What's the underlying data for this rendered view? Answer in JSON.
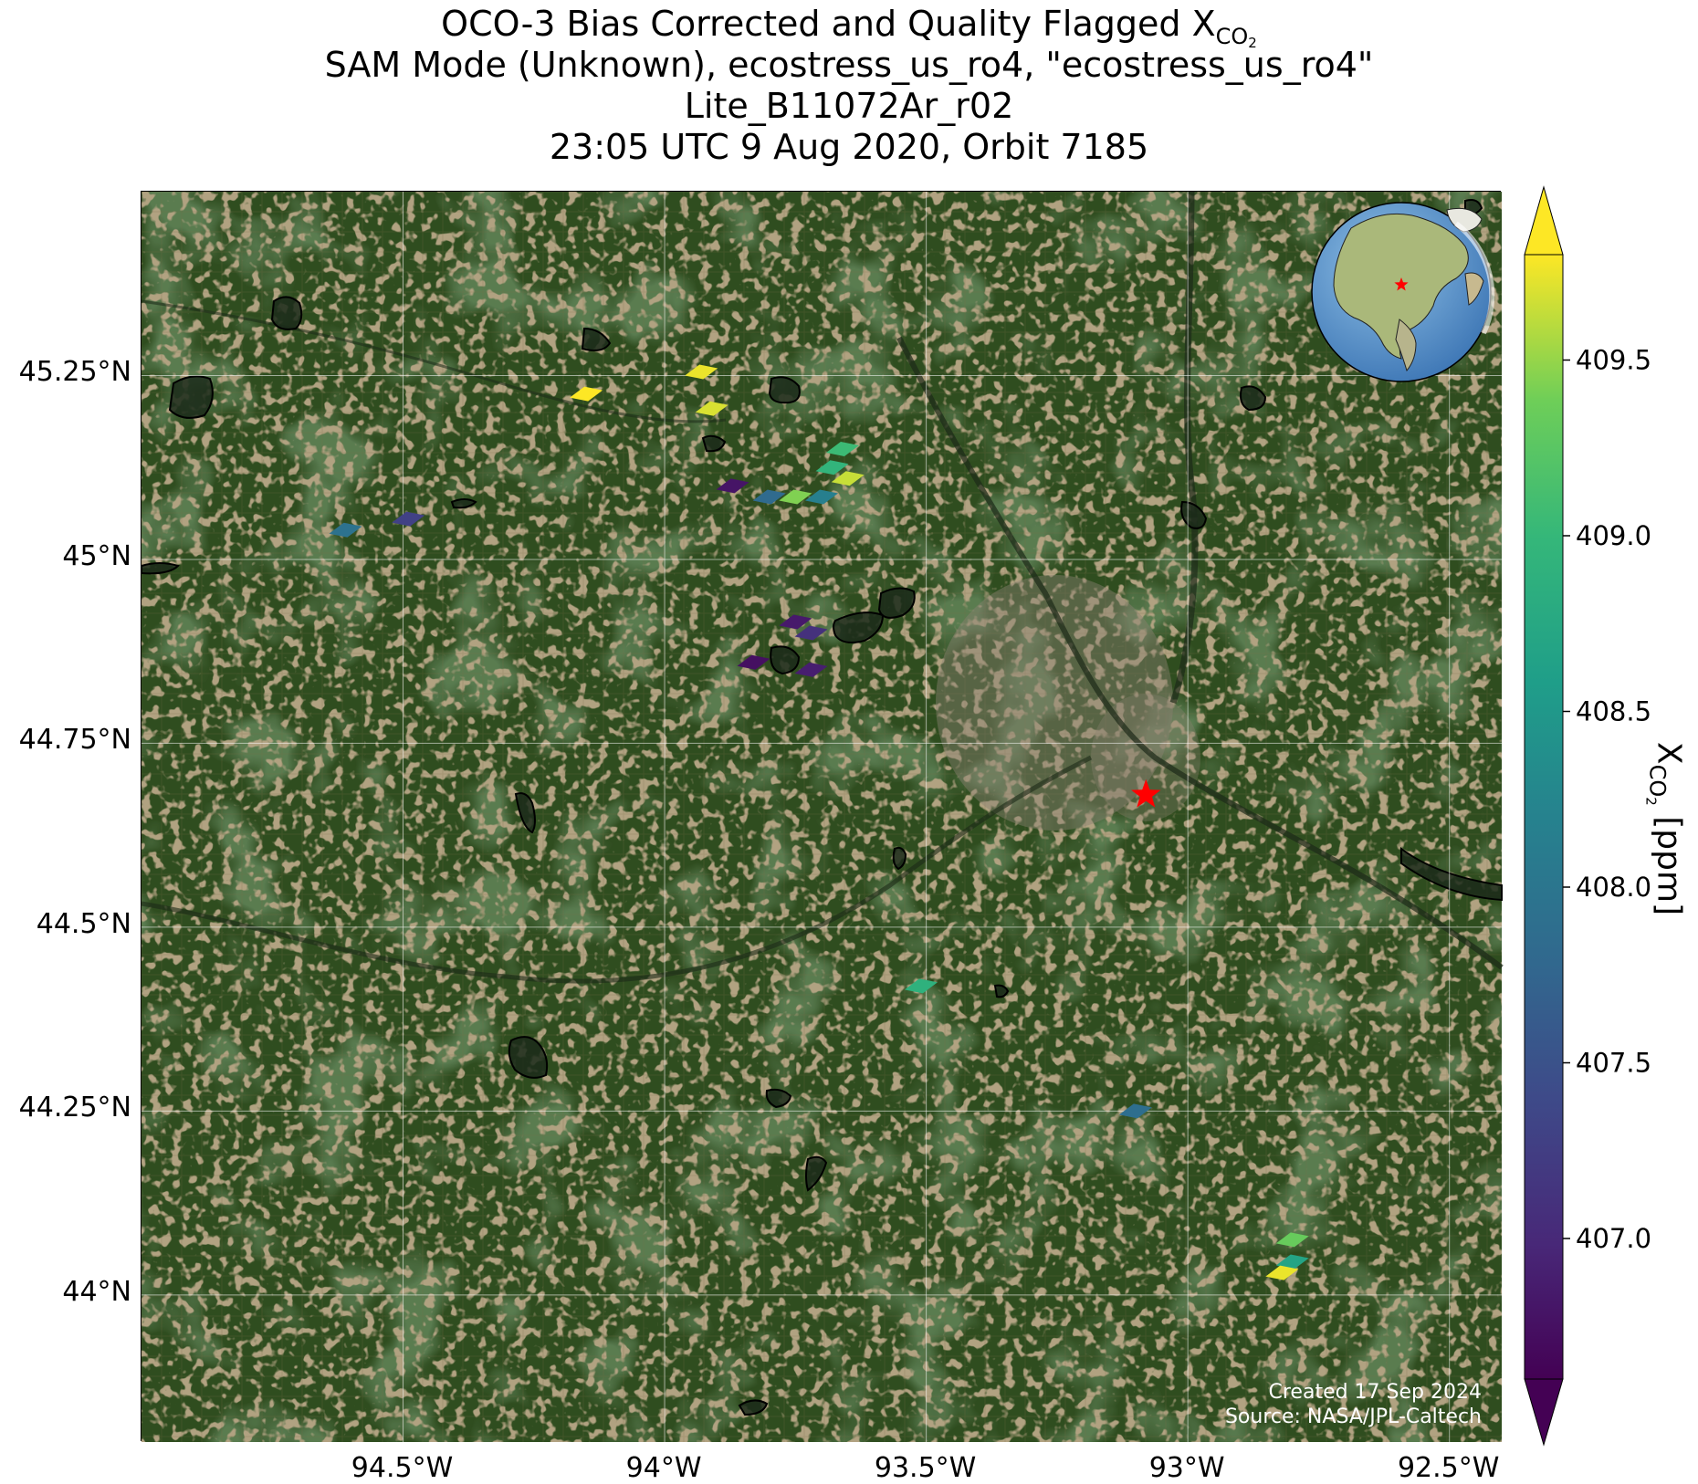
{
  "title": {
    "line1_prefix": "OCO-3 Bias Corrected and Quality Flagged X",
    "line1_sub": "CO",
    "line1_subsub": "2",
    "line2": "SAM Mode (Unknown), ecostress_us_ro4, \"ecostress_us_ro4\"",
    "line3": "Lite_B11072Ar_r02",
    "line4": "23:05 UTC 9 Aug 2020, Orbit 7185"
  },
  "map": {
    "lon_range": [
      -95.0,
      -92.4
    ],
    "lat_range": [
      43.8,
      45.5
    ],
    "basemap": "satellite imagery",
    "gridlines": true,
    "lon_ticks": [
      {
        "value": -94.5,
        "label": "94.5°W"
      },
      {
        "value": -94.0,
        "label": "94°W"
      },
      {
        "value": -93.5,
        "label": "93.5°W"
      },
      {
        "value": -93.0,
        "label": "93°W"
      },
      {
        "value": -92.5,
        "label": "92.5°W"
      }
    ],
    "lat_ticks": [
      {
        "value": 45.25,
        "label": "45.25°N"
      },
      {
        "value": 45.0,
        "label": "45°N"
      },
      {
        "value": 44.75,
        "label": "44.75°N"
      },
      {
        "value": 44.5,
        "label": "44.5°N"
      },
      {
        "value": 44.25,
        "label": "44.25°N"
      },
      {
        "value": 44.0,
        "label": "44°N"
      }
    ],
    "target_marker": {
      "lon": -93.08,
      "lat": 44.68,
      "color": "#ff0000",
      "icon": "star-icon"
    },
    "inset_globe": {
      "center_lon": -100,
      "center_lat": 40,
      "marker_color": "#ff0000",
      "icon": "globe-icon"
    },
    "credit_line1": "Created 17 Sep 2024",
    "credit_line2": "Source: NASA/JPL-Caltech"
  },
  "chart_data": {
    "type": "scatter",
    "colormap": "viridis",
    "colorbar_range": [
      406.6,
      409.8
    ],
    "colorbar_extend": "both",
    "colorbar_ticks": [
      407.0,
      407.5,
      408.0,
      408.5,
      409.0,
      409.5
    ],
    "colorbar_tick_labels": [
      "407.0",
      "407.5",
      "408.0",
      "408.5",
      "409.0",
      "409.5"
    ],
    "colorbar_label_prefix": "X",
    "colorbar_label_sub": "CO",
    "colorbar_label_subsub": "2",
    "colorbar_label_suffix": " [ppm]",
    "soundings": [
      {
        "lon": -93.93,
        "lat": 45.255,
        "xco2": 409.75
      },
      {
        "lon": -94.15,
        "lat": 45.225,
        "xco2": 409.8
      },
      {
        "lon": -93.91,
        "lat": 45.205,
        "xco2": 409.7
      },
      {
        "lon": -93.66,
        "lat": 45.15,
        "xco2": 409.05
      },
      {
        "lon": -93.68,
        "lat": 45.125,
        "xco2": 408.95
      },
      {
        "lon": -93.65,
        "lat": 45.11,
        "xco2": 409.65
      },
      {
        "lon": -93.87,
        "lat": 45.1,
        "xco2": 406.8
      },
      {
        "lon": -93.8,
        "lat": 45.085,
        "xco2": 407.85
      },
      {
        "lon": -93.75,
        "lat": 45.085,
        "xco2": 409.45
      },
      {
        "lon": -93.7,
        "lat": 45.085,
        "xco2": 408.15
      },
      {
        "lon": -94.61,
        "lat": 45.04,
        "xco2": 407.95
      },
      {
        "lon": -94.49,
        "lat": 45.055,
        "xco2": 407.3
      },
      {
        "lon": -93.75,
        "lat": 44.915,
        "xco2": 406.85
      },
      {
        "lon": -93.72,
        "lat": 44.9,
        "xco2": 407.1
      },
      {
        "lon": -93.83,
        "lat": 44.86,
        "xco2": 406.75
      },
      {
        "lon": -93.72,
        "lat": 44.85,
        "xco2": 406.9
      },
      {
        "lon": -93.51,
        "lat": 44.42,
        "xco2": 408.9
      },
      {
        "lon": -93.1,
        "lat": 44.25,
        "xco2": 407.9
      },
      {
        "lon": -92.8,
        "lat": 44.075,
        "xco2": 409.35
      },
      {
        "lon": -92.8,
        "lat": 44.045,
        "xco2": 408.7
      },
      {
        "lon": -92.82,
        "lat": 44.03,
        "xco2": 409.75
      }
    ]
  }
}
